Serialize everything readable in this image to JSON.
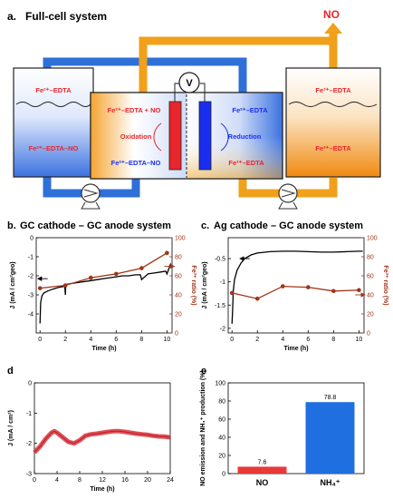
{
  "panels": {
    "a": {
      "label": "a.",
      "title": "Full-cell system"
    },
    "b": {
      "label": "b.",
      "title": "GC cathode – GC anode system"
    },
    "c": {
      "label": "c.",
      "title": "Ag cathode – GC anode system"
    },
    "d": {
      "label": "d"
    },
    "e": {
      "label": "e"
    }
  },
  "schematic": {
    "no_label": "NO",
    "voltmeter": "V",
    "left_tank_top": "Fe²⁺–EDTA",
    "left_tank_bottom": "Fe²⁺–EDTA–NO",
    "right_tank_top": "Fe³⁺–EDTA",
    "right_tank_bottom": "Fe³⁺–EDTA",
    "cell_left_top": "Fe²⁺–EDTA + NO",
    "cell_left_mid": "Oxidation",
    "cell_left_bottom": "Fe²⁺–EDTA–NO",
    "cell_right_top": "Fe²⁺–EDTA",
    "cell_right_mid": "Reduction",
    "cell_right_bottom": "Fe³⁺–EDTA",
    "colors": {
      "blue": "#2f6fd8",
      "orange": "#f0a01a",
      "red": "#e8262b",
      "electrode_blue": "#1a2ef0"
    }
  },
  "chart_data": [
    {
      "id": "b",
      "type": "line",
      "xlabel": "Time (h)",
      "ylabel": "J (mA / cm²geo)",
      "y2label": "Fe³⁺ ratio (%)",
      "xlim": [
        -0.3,
        10.4
      ],
      "ylim": [
        -5,
        0
      ],
      "y2lim": [
        0,
        100
      ],
      "xticks": [
        0,
        2,
        4,
        6,
        8,
        10
      ],
      "yticks": [
        -4,
        -3,
        -2,
        -1,
        0
      ],
      "y2ticks": [
        0,
        20,
        40,
        60,
        80,
        100
      ],
      "series": [
        {
          "axis": "left",
          "color": "#000000",
          "x": [
            0,
            0.05,
            0.15,
            0.3,
            0.6,
            1.0,
            1.5,
            1.95,
            2.0,
            2.02,
            2.1,
            2.5,
            3,
            3.5,
            4,
            4.5,
            5,
            5.5,
            6,
            6.5,
            7,
            7.5,
            7.9,
            8,
            8.5,
            9,
            9.5,
            9.9,
            10,
            10.3
          ],
          "y": [
            -4.5,
            -3.4,
            -3.05,
            -2.9,
            -2.8,
            -2.7,
            -2.6,
            -2.55,
            -3.0,
            -2.6,
            -2.45,
            -2.4,
            -2.35,
            -2.3,
            -2.25,
            -2.2,
            -2.15,
            -2.1,
            -2.05,
            -2.0,
            -2.0,
            -1.95,
            -1.95,
            -2.2,
            -1.9,
            -1.85,
            -1.8,
            -1.75,
            -1.9,
            -1.35
          ]
        },
        {
          "axis": "right",
          "color": "#a0341a",
          "markers": true,
          "x": [
            0,
            2,
            4,
            6,
            8,
            10
          ],
          "y": [
            47,
            50,
            58,
            62,
            68,
            84
          ]
        }
      ],
      "arrows": [
        {
          "to": "left",
          "x": 0.6,
          "y": -2.15
        },
        {
          "to": "right",
          "x": 9.8,
          "y2": 70
        }
      ]
    },
    {
      "id": "c",
      "type": "line",
      "xlabel": "Time (h)",
      "ylabel": "J (mA / cm²geo)",
      "y2label": "Fe³⁺ ratio (%)",
      "xlim": [
        -0.3,
        10.4
      ],
      "ylim": [
        -2.1,
        -0.05
      ],
      "y2lim": [
        0,
        100
      ],
      "xticks": [
        0,
        2,
        4,
        6,
        8,
        10
      ],
      "yticks": [
        -2.0,
        -1.5,
        -1.0,
        -0.5
      ],
      "y2ticks": [
        0,
        20,
        40,
        60,
        80,
        100
      ],
      "series": [
        {
          "axis": "left",
          "color": "#000000",
          "x": [
            0,
            0.05,
            0.1,
            0.2,
            0.4,
            0.7,
            1.0,
            1.5,
            2.0,
            3.0,
            4.0,
            5.0,
            6.0,
            7.0,
            8.0,
            9.0,
            10.0,
            10.3
          ],
          "y": [
            -1.9,
            -1.6,
            -1.2,
            -0.95,
            -0.75,
            -0.6,
            -0.5,
            -0.42,
            -0.38,
            -0.35,
            -0.34,
            -0.34,
            -0.35,
            -0.36,
            -0.36,
            -0.35,
            -0.34,
            -0.34
          ]
        },
        {
          "axis": "right",
          "color": "#a0341a",
          "markers": true,
          "x": [
            0,
            2,
            4,
            6,
            8,
            10
          ],
          "y": [
            42,
            36,
            49,
            48,
            44,
            45
          ]
        }
      ],
      "arrows": [
        {
          "to": "left",
          "x": 1.4,
          "y": -0.5
        },
        {
          "to": "right",
          "x": 9.7,
          "y2": 40
        }
      ]
    },
    {
      "id": "d",
      "type": "line",
      "xlabel": "Time (h)",
      "ylabel": "J (mA / cm²)",
      "xlim": [
        0,
        24
      ],
      "ylim": [
        -3,
        0
      ],
      "xticks": [
        0,
        4,
        8,
        12,
        16,
        20,
        24
      ],
      "yticks": [
        -3,
        -2,
        -1,
        0
      ],
      "series": [
        {
          "color": "#d9323a",
          "band": true,
          "x": [
            0,
            1,
            2,
            3,
            3.5,
            4,
            5,
            6,
            7,
            8,
            9,
            10,
            11,
            12,
            13,
            14,
            15,
            16,
            17,
            18,
            19,
            20,
            21,
            22,
            23,
            24
          ],
          "y": [
            -2.3,
            -2.1,
            -1.85,
            -1.65,
            -1.6,
            -1.65,
            -1.8,
            -1.95,
            -2.0,
            -1.9,
            -1.75,
            -1.7,
            -1.68,
            -1.65,
            -1.62,
            -1.6,
            -1.6,
            -1.62,
            -1.65,
            -1.68,
            -1.7,
            -1.72,
            -1.75,
            -1.77,
            -1.78,
            -1.8
          ]
        }
      ]
    },
    {
      "id": "e",
      "type": "bar",
      "ylabel": "NO emission and NH₄⁺ production (%)",
      "categories": [
        "NO",
        "NH₄⁺"
      ],
      "values": [
        7.6,
        78.8
      ],
      "value_labels": [
        "7.6",
        "78.8"
      ],
      "colors": [
        "#e8393a",
        "#1f6fe0"
      ],
      "ylim": [
        0,
        100
      ],
      "yticks": [
        0,
        20,
        40,
        60,
        80,
        100
      ]
    }
  ]
}
